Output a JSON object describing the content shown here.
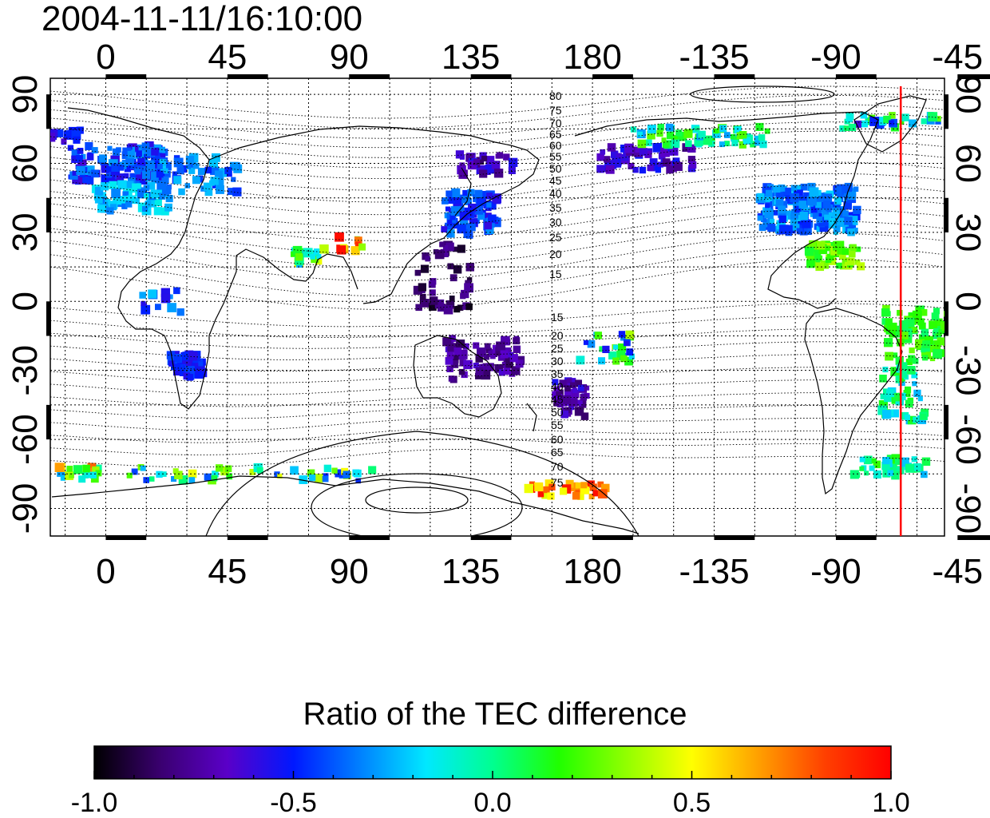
{
  "title": "2004-11-11/16:10:00",
  "top_lon_ticks": [
    "0",
    "45",
    "90",
    "135",
    "180",
    "-135",
    "-90",
    "-45"
  ],
  "bottom_lon_ticks": [
    "0",
    "45",
    "90",
    "135",
    "180",
    "-135",
    "-90",
    "-45"
  ],
  "left_lat_ticks": [
    "90",
    "60",
    "30",
    "0",
    "-30",
    "-60",
    "-90"
  ],
  "right_lat_ticks": [
    "90",
    "60",
    "30",
    "0",
    "-30",
    "-60",
    "-90"
  ],
  "contour_labels_north": [
    "80",
    "75",
    "70",
    "65",
    "60",
    "55",
    "50",
    "45",
    "40",
    "35",
    "30",
    "25",
    "20",
    "15"
  ],
  "contour_labels_south": [
    "15",
    "20",
    "25",
    "30",
    "35",
    "40",
    "45",
    "50",
    "55",
    "60",
    "65",
    "70",
    "75"
  ],
  "station_longitude": -66,
  "colors": {
    "station_line": "#ff0000",
    "frame": "#000000",
    "grid": "#000000",
    "colormap": [
      "#000000",
      "#3a0070",
      "#5a00c8",
      "#0018ff",
      "#0080ff",
      "#00e8ff",
      "#00ff90",
      "#20ff00",
      "#90ff00",
      "#ffff00",
      "#ffa000",
      "#ff4000",
      "#ff0000"
    ]
  },
  "colorbar": {
    "title": "Ratio of the TEC difference",
    "ticks": [
      "-1.0",
      "-0.5",
      "0.0",
      "0.5",
      "1.0"
    ],
    "range": [
      -1.0,
      1.0
    ]
  }
}
